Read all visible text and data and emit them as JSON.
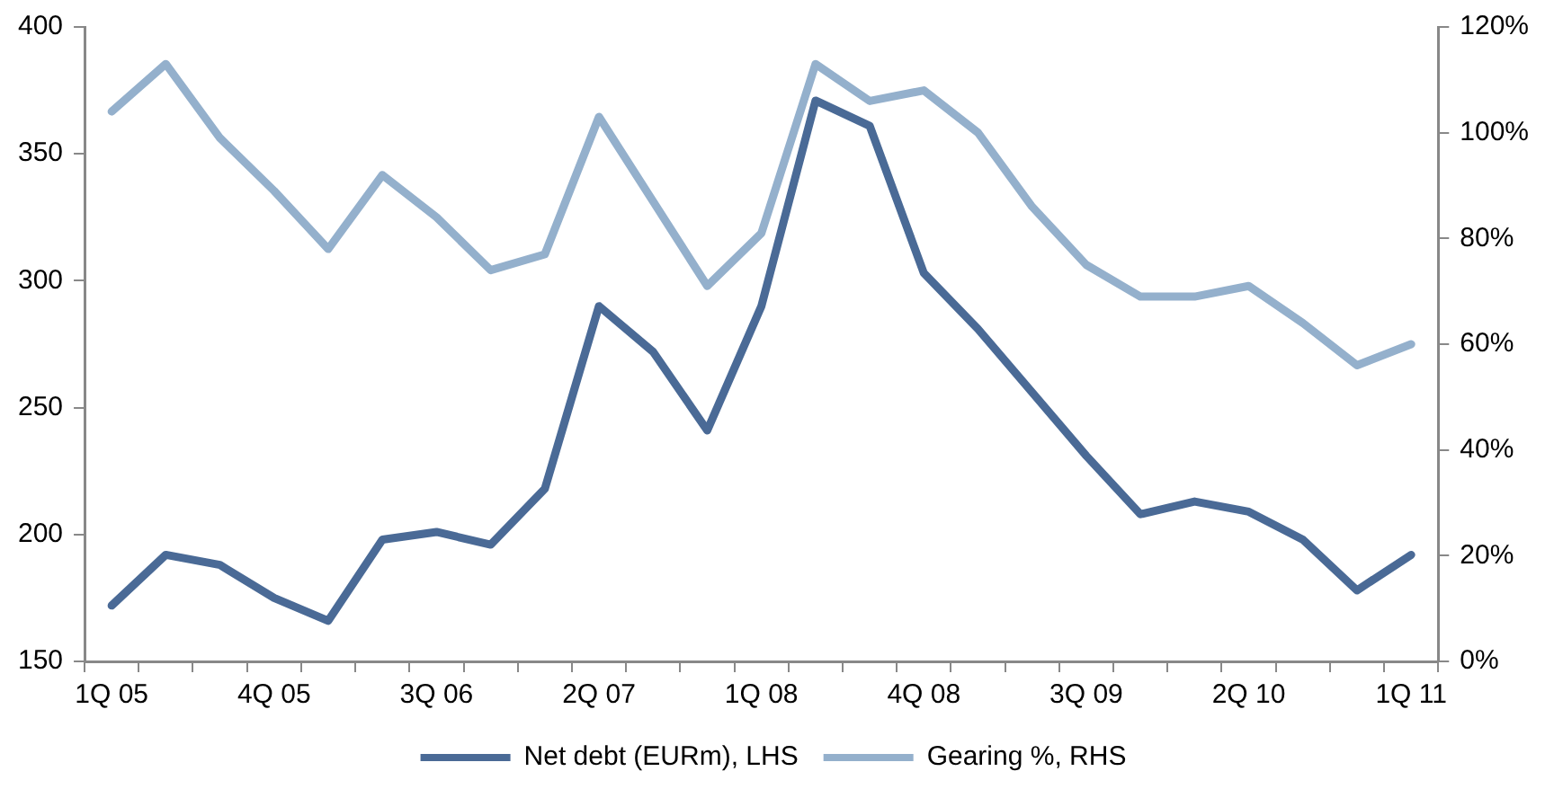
{
  "chart_data": {
    "type": "line",
    "categories": [
      "1Q 05",
      null,
      null,
      "4Q 05",
      null,
      null,
      "3Q 06",
      null,
      null,
      "2Q 07",
      null,
      null,
      "1Q 08",
      null,
      null,
      "4Q 08",
      null,
      null,
      "3Q 09",
      null,
      null,
      "2Q 10",
      null,
      null,
      "1Q 11"
    ],
    "series": [
      {
        "name": "Net debt (EURm), LHS",
        "color": "#4a6a96",
        "values": [
          172,
          192,
          188,
          175,
          166,
          198,
          201,
          196,
          218,
          290,
          272,
          241,
          290,
          371,
          361,
          303,
          281,
          256,
          231,
          208,
          213,
          209,
          198,
          178,
          192
        ]
      },
      {
        "name": "Gearing %, RHS",
        "color": "#94b0cc",
        "axis": "y2",
        "values": [
          104,
          113,
          99,
          89,
          78,
          92,
          84,
          74,
          77,
          103,
          87,
          71,
          81,
          113,
          106,
          108,
          100,
          86,
          75,
          69,
          69,
          71,
          64,
          56,
          60
        ]
      }
    ],
    "ylim": [
      150,
      400
    ],
    "yticks": [
      150,
      200,
      250,
      300,
      350,
      400
    ],
    "y2lim": [
      0,
      120
    ],
    "y2ticks": [
      {
        "value": 0,
        "label": "0%"
      },
      {
        "value": 20,
        "label": "20%"
      },
      {
        "value": 40,
        "label": "40%"
      },
      {
        "value": 60,
        "label": "60%"
      },
      {
        "value": 80,
        "label": "80%"
      },
      {
        "value": 100,
        "label": "100%"
      },
      {
        "value": 120,
        "label": "120%"
      }
    ],
    "grid": false,
    "legend": "bottom",
    "marker": "none",
    "line_style": "solid"
  }
}
